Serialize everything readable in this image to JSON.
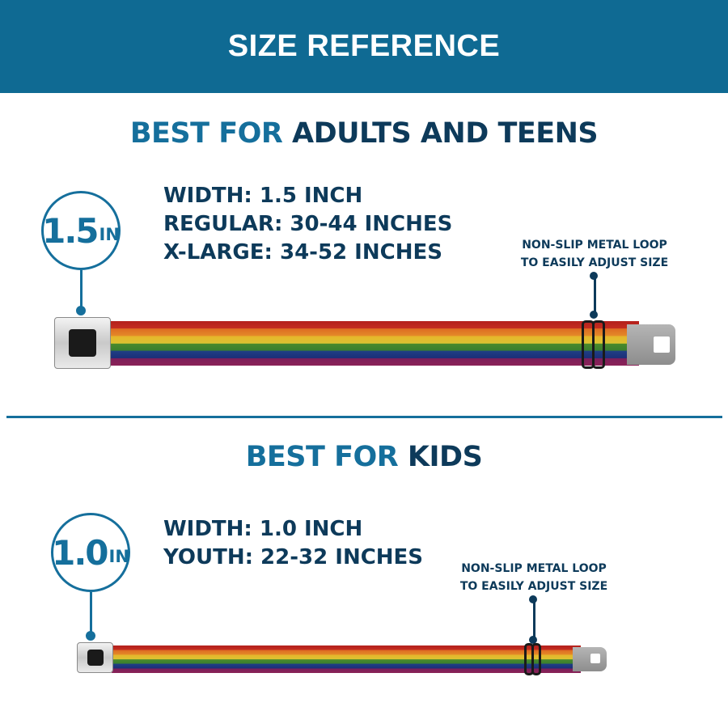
{
  "header": {
    "title": "SIZE REFERENCE"
  },
  "adults": {
    "title_accent": "BEST FOR",
    "title_rest": " ADULTS AND TEENS",
    "badge_value": "1.5",
    "badge_unit": "IN",
    "specs": [
      "WIDTH: 1.5 INCH",
      "REGULAR: 30-44 INCHES",
      "X-LARGE: 34-52 INCHES"
    ],
    "note": [
      "NON-SLIP METAL LOOP",
      "TO EASILY ADJUST SIZE"
    ]
  },
  "kids": {
    "title_accent": "BEST FOR",
    "title_rest": " KIDS",
    "badge_value": "1.0",
    "badge_unit": "IN",
    "specs": [
      "WIDTH: 1.0 INCH",
      "YOUTH: 22-32 INCHES"
    ],
    "note": [
      "NON-SLIP METAL LOOP",
      "TO EASILY ADJUST SIZE"
    ]
  },
  "colors": {
    "brand_blue": "#0f6a93",
    "navy_text": "#0d3a5a",
    "accent_blue": "#156f9c"
  },
  "belt_pattern": "rainbow-stripes"
}
